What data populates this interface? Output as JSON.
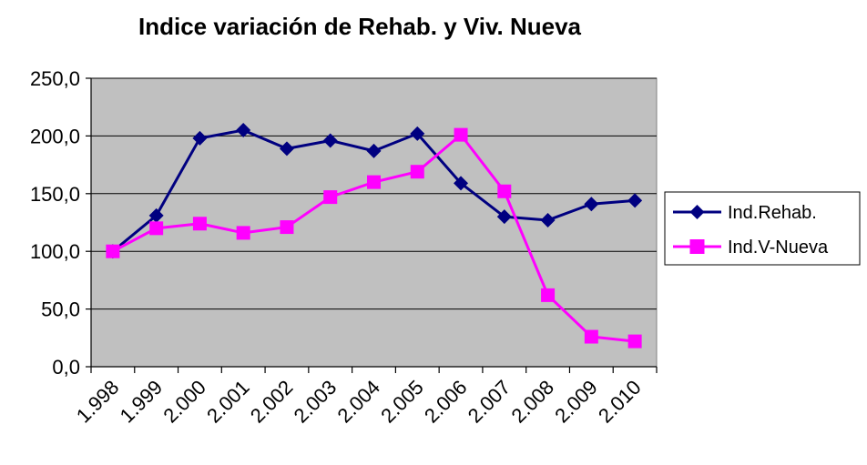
{
  "chart_data": {
    "type": "line",
    "title": "Indice variación de Rehab. y Viv. Nueva",
    "xlabel": "",
    "ylabel": "",
    "categories": [
      "1.998",
      "1.999",
      "2.000",
      "2.001",
      "2.002",
      "2.003",
      "2.004",
      "2.005",
      "2.006",
      "2.007",
      "2.008",
      "2.009",
      "2.010"
    ],
    "y_ticks": [
      "0,0",
      "50,0",
      "100,0",
      "150,0",
      "200,0",
      "250,0"
    ],
    "ylim": [
      0,
      250
    ],
    "grid": true,
    "plot_background": "#c0c0c0",
    "legend_position": "right",
    "series": [
      {
        "name": "Ind.Rehab.",
        "color": "#000080",
        "marker": "diamond",
        "values": [
          100,
          131,
          198,
          205,
          189,
          196,
          187,
          202,
          159,
          130,
          127,
          141,
          144
        ]
      },
      {
        "name": "Ind.V-Nueva",
        "color": "#ff00ff",
        "marker": "square",
        "values": [
          100,
          120,
          124,
          116,
          121,
          147,
          160,
          169,
          201,
          152,
          62,
          26,
          22
        ]
      }
    ]
  }
}
